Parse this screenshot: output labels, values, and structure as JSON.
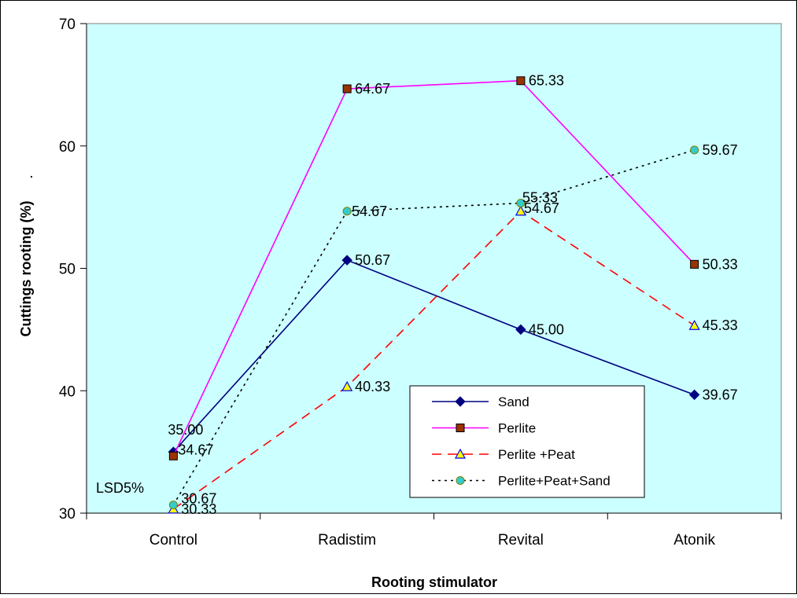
{
  "chart_data": {
    "type": "line",
    "title": "",
    "xlabel": "Rooting stimulator",
    "ylabel": "Cuttings rooting (%)",
    "ylim": [
      30,
      70
    ],
    "yticks": [
      30,
      40,
      50,
      60,
      70
    ],
    "categories": [
      "Control",
      "Radistim",
      "Revital",
      "Atonik"
    ],
    "grid": false,
    "legend_position": "bottom-right",
    "plot_background": "#ccffff",
    "annotation": "LSD5%",
    "series": [
      {
        "name": "Sand",
        "values": [
          35.0,
          50.67,
          45.0,
          39.67
        ],
        "labels": [
          "35.00",
          "50.67",
          "45.00",
          "39.67"
        ],
        "color": "#000080",
        "marker": "diamond",
        "marker_fill": "#000080",
        "dash": "solid"
      },
      {
        "name": "Perlite",
        "values": [
          34.67,
          64.67,
          65.33,
          50.33
        ],
        "labels": [
          "34.67",
          "64.67",
          "65.33",
          "50.33"
        ],
        "color": "#ff00ff",
        "marker": "square",
        "marker_fill": "#993300",
        "dash": "solid"
      },
      {
        "name": "Perlite +Peat",
        "values": [
          30.33,
          40.33,
          54.67,
          45.33
        ],
        "labels": [
          "30.33",
          "40.33",
          "54.67",
          "45.33"
        ],
        "color": "#ff0000",
        "marker": "triangle",
        "marker_fill": "#ffff00",
        "dash": "dashed"
      },
      {
        "name": "Perlite+Peat+Sand",
        "values": [
          30.67,
          54.67,
          55.33,
          59.67
        ],
        "labels": [
          "30.67",
          "54.67",
          "55.33",
          "59.67"
        ],
        "color": "#000000",
        "marker": "circle",
        "marker_fill": "#33cccc",
        "dash": "dotted"
      }
    ]
  }
}
